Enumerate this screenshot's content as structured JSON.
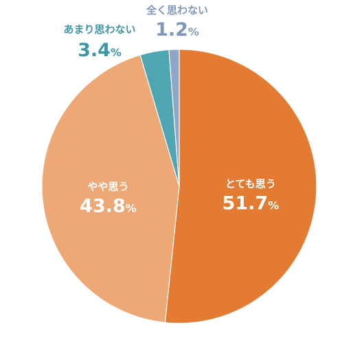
{
  "chart_data": {
    "type": "pie",
    "start": "top",
    "direction": "clockwise",
    "slices": [
      {
        "label": "とても思う",
        "value": 51.7,
        "value_text": "51.7",
        "unit": "%",
        "color": "#E47B32",
        "label_color": "#FFFFFF"
      },
      {
        "label": "やや思う",
        "value": 43.8,
        "value_text": "43.8",
        "unit": "%",
        "color": "#EEA876",
        "label_color": "#FFFFFF"
      },
      {
        "label": "あまり思わない",
        "value": 3.4,
        "value_text": "3.4",
        "unit": "%",
        "color": "#4FA6B2",
        "label_color": "#3E96A5"
      },
      {
        "label": "全く思わない",
        "value": 1.2,
        "value_text": "1.2",
        "unit": "%",
        "color": "#8EA6C7",
        "label_color": "#7E97BC"
      }
    ]
  }
}
